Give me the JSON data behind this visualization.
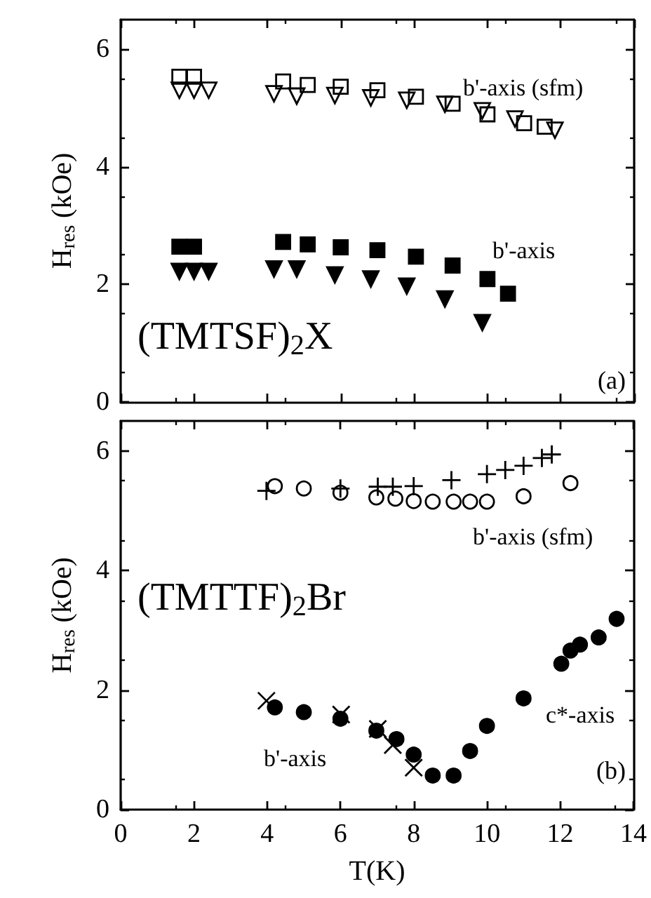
{
  "chart_data": [
    {
      "type": "scatter",
      "ylabel": "H$_{res}$ (kOe)",
      "xlim": [
        0,
        14
      ],
      "xticks": [
        0,
        2,
        4,
        6,
        8,
        10,
        12,
        14
      ],
      "ylim": [
        0,
        6.5
      ],
      "yticks": [
        0,
        2,
        4,
        6
      ],
      "tick_labels": "y",
      "grid": false,
      "annotations": [
        "b'-axis (sfm)",
        "b'-axis",
        "(TMTSF)$_{2}$X",
        "(a)"
      ],
      "series": [
        {
          "color": "#000000",
          "marker": "square_open",
          "x": [
            1.6,
            2.0,
            4.43,
            5.1,
            6.0,
            7.0,
            8.05,
            9.05,
            10.0,
            11.0,
            11.56
          ],
          "values": [
            5.53,
            5.53,
            5.45,
            5.39,
            5.36,
            5.3,
            5.19,
            5.07,
            4.89,
            4.74,
            4.68
          ]
        },
        {
          "color": "#000000",
          "marker": "triangle_down_open",
          "x": [
            1.6,
            2.0,
            2.4,
            4.18,
            4.8,
            5.84,
            6.82,
            7.8,
            8.84,
            9.86,
            10.75,
            11.84
          ],
          "values": [
            5.3,
            5.3,
            5.3,
            5.24,
            5.2,
            5.21,
            5.17,
            5.13,
            5.06,
            4.95,
            4.81,
            4.62
          ]
        },
        {
          "color": "#000000",
          "marker": "square",
          "x": [
            1.6,
            2.0,
            4.43,
            5.1,
            6.0,
            7.0,
            8.05,
            9.05,
            10.0,
            10.56
          ],
          "values": [
            2.64,
            2.64,
            2.72,
            2.68,
            2.63,
            2.58,
            2.47,
            2.32,
            2.09,
            1.84
          ]
        },
        {
          "color": "#000000",
          "marker": "triangle_down",
          "x": [
            1.6,
            2.0,
            2.4,
            4.18,
            4.8,
            5.84,
            6.82,
            7.8,
            8.84,
            9.86
          ],
          "values": [
            2.22,
            2.22,
            2.22,
            2.26,
            2.26,
            2.16,
            2.09,
            1.97,
            1.75,
            1.35
          ]
        }
      ]
    },
    {
      "type": "scatter",
      "xlabel": "T(K)",
      "ylabel": "H$_{res}$ (kOe)",
      "xlim": [
        0,
        14
      ],
      "xticks": [
        0,
        2,
        4,
        6,
        8,
        10,
        12,
        14
      ],
      "ylim": [
        0,
        6.5
      ],
      "yticks": [
        0,
        2,
        4,
        6
      ],
      "grid": false,
      "annotations": [
        "b'-axis (sfm)",
        "b'-axis",
        "c*-axis",
        "(TMTTF)$_{2}$Br",
        "(b)"
      ],
      "series": [
        {
          "color": "#000000",
          "marker": "plus",
          "x": [
            3.98,
            6.0,
            7.02,
            7.43,
            8.0,
            9.03,
            10.0,
            10.5,
            11.0,
            11.5,
            11.77
          ],
          "values": [
            5.33,
            5.37,
            5.4,
            5.4,
            5.41,
            5.51,
            5.61,
            5.68,
            5.75,
            5.88,
            5.94
          ]
        },
        {
          "color": "#000000",
          "marker": "circle_open",
          "x": [
            4.21,
            5.0,
            6.0,
            6.98,
            7.5,
            8.0,
            8.52,
            9.09,
            9.54,
            10.0,
            11.0,
            12.28
          ],
          "values": [
            5.41,
            5.37,
            5.3,
            5.22,
            5.2,
            5.16,
            5.15,
            5.15,
            5.15,
            5.15,
            5.24,
            5.46
          ]
        },
        {
          "color": "#000000",
          "marker": "circle",
          "x": [
            4.21,
            5.0,
            6.0,
            6.98,
            7.53,
            8.0,
            8.52,
            9.09,
            9.54,
            10.0,
            11.0,
            12.03,
            12.28,
            12.54,
            13.05,
            13.54
          ],
          "values": [
            1.71,
            1.63,
            1.52,
            1.32,
            1.18,
            0.92,
            0.57,
            0.57,
            0.98,
            1.4,
            1.86,
            2.44,
            2.66,
            2.76,
            2.88,
            3.19
          ]
        },
        {
          "color": "#000000",
          "marker": "cross",
          "x": [
            3.98,
            6.02,
            7.02,
            7.43,
            8.0
          ],
          "values": [
            1.82,
            1.59,
            1.35,
            1.08,
            0.7
          ]
        }
      ]
    }
  ]
}
